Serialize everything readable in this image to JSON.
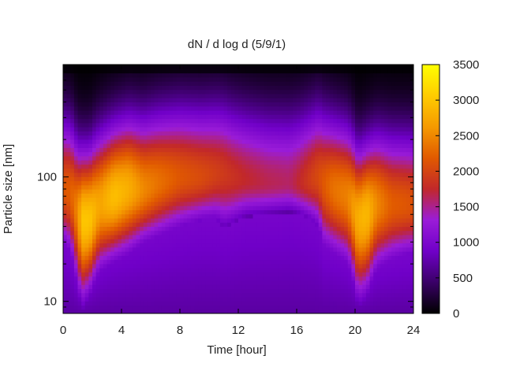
{
  "chart_data": {
    "type": "heatmap",
    "title": "dN / d log d (5/9/1)",
    "xlabel": "Time [hour]",
    "ylabel": "Particle size [nm]",
    "xlim": [
      0,
      24
    ],
    "ylim_nm": [
      8,
      800
    ],
    "y_scale": "log",
    "x_ticks": [
      "0",
      "4",
      "8",
      "12",
      "16",
      "20",
      "24"
    ],
    "x_tick_values": [
      0,
      4,
      8,
      12,
      16,
      20,
      24
    ],
    "y_ticks": [
      "10",
      "100"
    ],
    "y_tick_values": [
      10,
      100
    ],
    "colorbar": {
      "min": 0,
      "max": 3500,
      "ticks": [
        "0",
        "500",
        "1000",
        "1500",
        "2000",
        "2500",
        "3000",
        "3500"
      ],
      "tick_values": [
        0,
        500,
        1000,
        1500,
        2000,
        2500,
        3000,
        3500
      ],
      "palette": [
        "#000000",
        "#3a0067",
        "#7000c8",
        "#9a1cd8",
        "#c2282a",
        "#e15a00",
        "#f59a00",
        "#ffcc00",
        "#ffff00"
      ]
    },
    "profile": {
      "hours": [
        0,
        0.5,
        1,
        1.3,
        1.8,
        2.5,
        3.5,
        4.5,
        5.5,
        6.5,
        8,
        9.5,
        10.5,
        11,
        11.5,
        12.5,
        14,
        15.5,
        16.2,
        17,
        17.5,
        17.8,
        18.5,
        19.5,
        20.2,
        20.8,
        21.5,
        22.5,
        23.5,
        24
      ],
      "peak_value": [
        2150,
        2200,
        2500,
        3000,
        3000,
        2700,
        2950,
        2800,
        2500,
        2350,
        2150,
        2050,
        1950,
        1900,
        1850,
        1750,
        1650,
        1600,
        1750,
        1950,
        2050,
        2150,
        2350,
        2450,
        2800,
        2900,
        2500,
        2200,
        2150,
        2100
      ],
      "peak_diameter_nm": [
        80,
        75,
        50,
        45,
        45,
        60,
        70,
        80,
        80,
        90,
        100,
        100,
        105,
        105,
        100,
        95,
        90,
        90,
        90,
        95,
        100,
        90,
        80,
        70,
        45,
        50,
        60,
        60,
        60,
        60
      ],
      "lower_edge_nm": [
        30,
        25,
        14,
        12,
        14,
        20,
        25,
        28,
        32,
        35,
        40,
        45,
        45,
        40,
        42,
        48,
        50,
        52,
        50,
        45,
        40,
        28,
        26,
        22,
        12,
        14,
        20,
        22,
        24,
        24
      ]
    }
  }
}
